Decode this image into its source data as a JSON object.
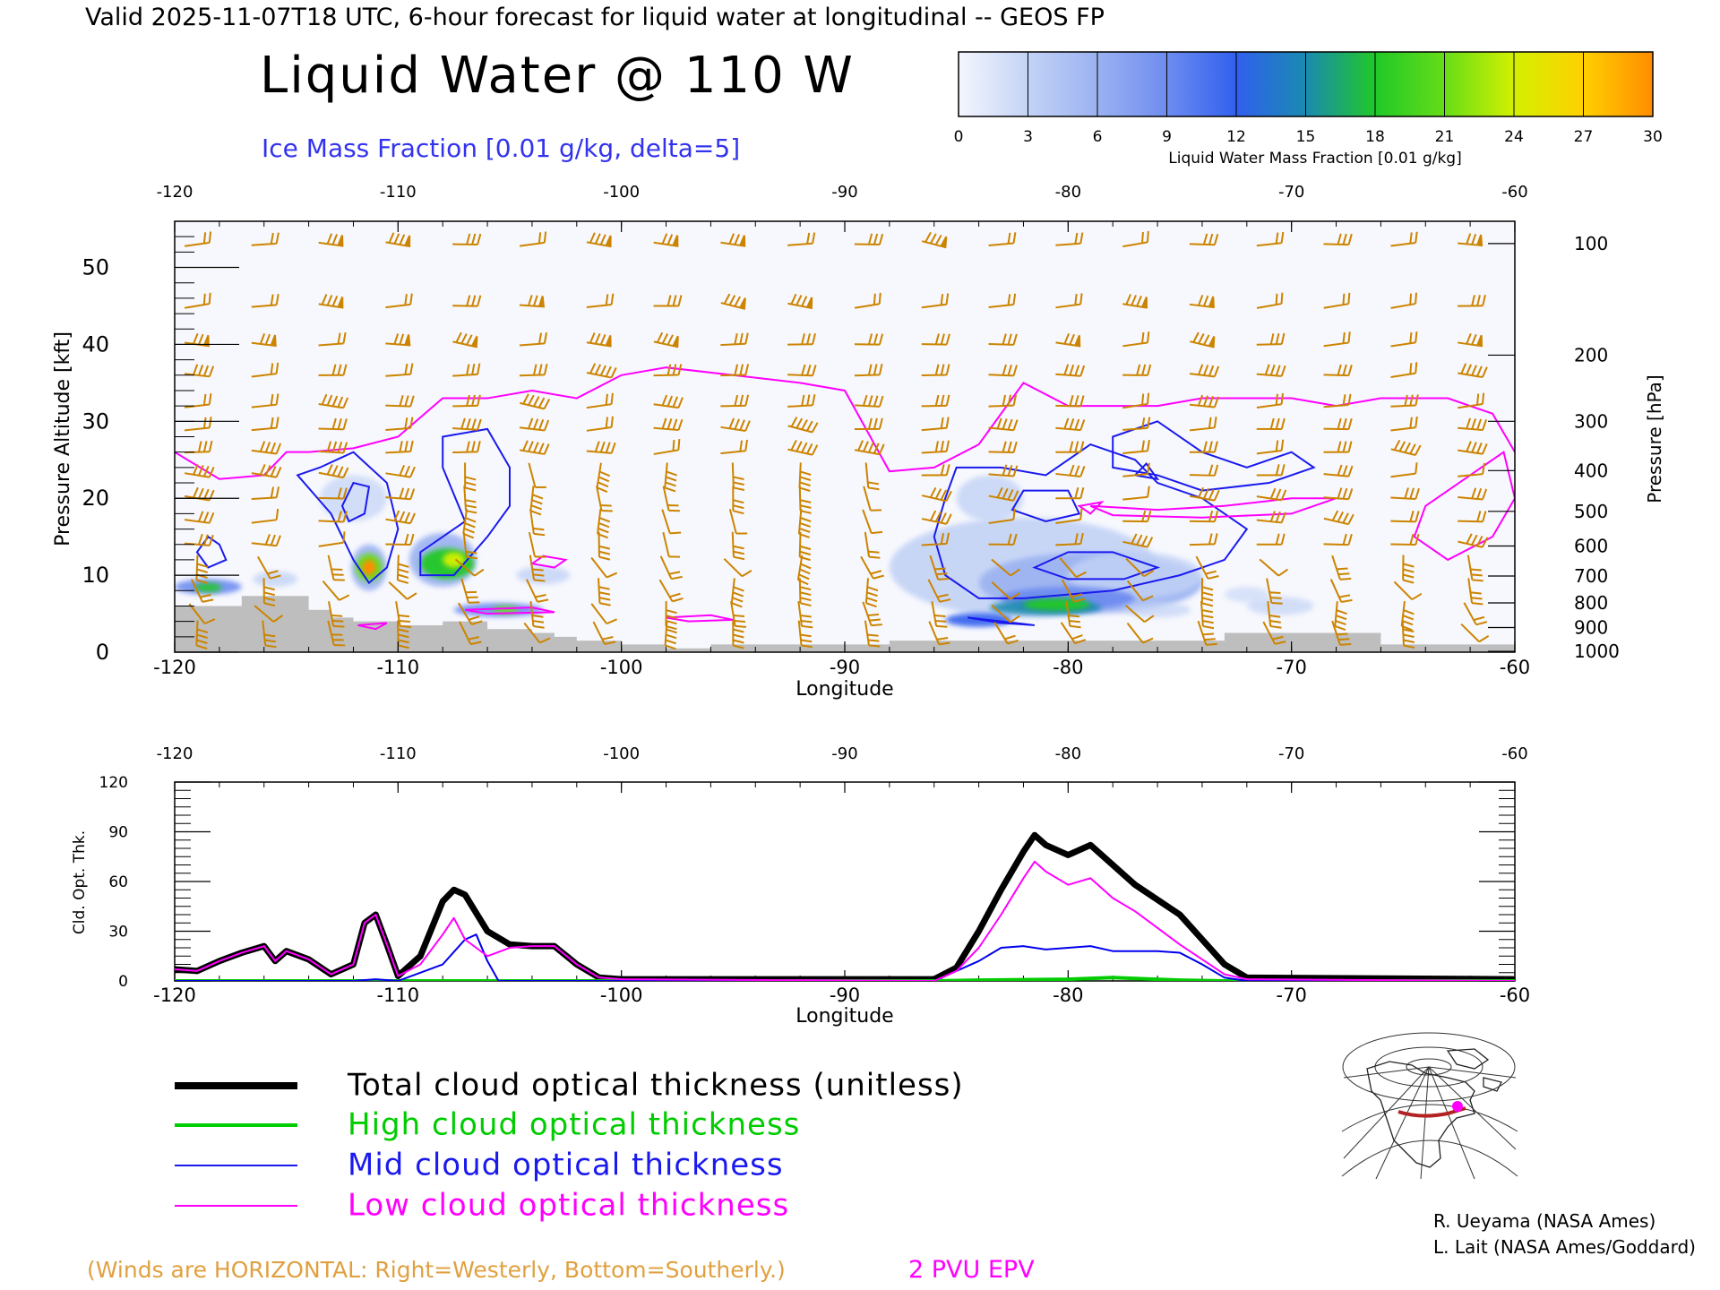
{
  "header": {
    "valid_line": "Valid 2025-11-07T18 UTC, 6-hour forecast for liquid water at longitudinal -- GEOS FP",
    "title": "Liquid Water @ 110 W",
    "subtitle": "Ice Mass Fraction [0.01 g/kg, delta=5]"
  },
  "colorbar": {
    "ticks": [
      "0",
      "3",
      "6",
      "9",
      "12",
      "15",
      "18",
      "21",
      "24",
      "27",
      "30"
    ],
    "label": "Liquid Water Mass Fraction [0.01 g/kg]",
    "colors": [
      "#f4f6fd",
      "#c3d3f6",
      "#9bb2f1",
      "#6e8cf0",
      "#3060ee",
      "#1a8ab0",
      "#20c828",
      "#66dd18",
      "#d4f000",
      "#ffd000",
      "#ff8c00",
      "#ff2000"
    ]
  },
  "cross_section": {
    "x_tick_labels": [
      "-120",
      "-110",
      "-100",
      "-90",
      "-80",
      "-70",
      "-60"
    ],
    "x_ticks": [
      -120,
      -110,
      -100,
      -90,
      -80,
      -70,
      -60
    ],
    "xlabel": "Longitude",
    "ylabel": "Pressure Altitude [kft]",
    "y_ticks": [
      "0",
      "10",
      "20",
      "30",
      "40",
      "50"
    ],
    "ylim": [
      0,
      56
    ],
    "right_label": "Pressure [hPa]",
    "pressure_ticks": [
      "100",
      "200",
      "300",
      "400",
      "500",
      "600",
      "700",
      "800",
      "900",
      "1000"
    ],
    "pressure_alt_kft": [
      53.1,
      38.6,
      30.0,
      23.6,
      18.3,
      13.8,
      9.9,
      6.4,
      3.2,
      0.1
    ],
    "terrain_kft": [
      [
        -120,
        6
      ],
      [
        -118,
        6
      ],
      [
        -117,
        7.3
      ],
      [
        -115,
        7.3
      ],
      [
        -114,
        5.5
      ],
      [
        -113,
        4.5
      ],
      [
        -112,
        4
      ],
      [
        -110,
        3.5
      ],
      [
        -108,
        4
      ],
      [
        -106,
        3
      ],
      [
        -104,
        2.5
      ],
      [
        -103,
        2
      ],
      [
        -102,
        1.5
      ],
      [
        -100,
        1
      ],
      [
        -98,
        0.5
      ],
      [
        -96,
        1
      ],
      [
        -94,
        1
      ],
      [
        -88,
        1.5
      ],
      [
        -85,
        1.5
      ],
      [
        -80,
        1.5
      ],
      [
        -75,
        1.5
      ],
      [
        -73,
        2.5
      ],
      [
        -66,
        1
      ],
      [
        -60,
        1
      ]
    ],
    "epv_2pvu_kft": [
      [
        -120,
        26
      ],
      [
        -118,
        22.5
      ],
      [
        -116,
        23
      ],
      [
        -115,
        26
      ],
      [
        -114,
        26
      ],
      [
        -112,
        26.5
      ],
      [
        -110,
        28
      ],
      [
        -108,
        33
      ],
      [
        -106,
        33
      ],
      [
        -104,
        34
      ],
      [
        -102,
        33
      ],
      [
        -100,
        36
      ],
      [
        -98,
        37
      ],
      [
        -95,
        36
      ],
      [
        -92,
        35
      ],
      [
        -90,
        34
      ],
      [
        -88,
        23.5
      ],
      [
        -86,
        24
      ],
      [
        -84,
        27
      ],
      [
        -82,
        35
      ],
      [
        -80,
        32
      ],
      [
        -78,
        32
      ],
      [
        -76,
        32
      ],
      [
        -74,
        33
      ],
      [
        -72,
        33
      ],
      [
        -70,
        33
      ],
      [
        -68,
        32
      ],
      [
        -66,
        33
      ],
      [
        -63,
        33
      ],
      [
        -61,
        31
      ],
      [
        -60,
        26
      ]
    ]
  },
  "optical_thickness": {
    "ylabel": "Cld. Opt. Thk.",
    "y_ticks": [
      "0",
      "30",
      "60",
      "90",
      "120"
    ],
    "ylim": [
      0,
      120
    ],
    "xlabel": "Longitude",
    "x_tick_labels": [
      "-120",
      "-110",
      "-100",
      "-90",
      "-80",
      "-70",
      "-60"
    ]
  },
  "chart_data": [
    {
      "type": "line",
      "title": "",
      "xlabel": "Longitude",
      "ylabel": "Cld. Opt. Thk.",
      "xlim": [
        -120,
        -60
      ],
      "ylim": [
        0,
        120
      ],
      "series": [
        {
          "name": "Total cloud optical thickness (unitless)",
          "color": "#000000",
          "points": [
            [
              -120,
              7
            ],
            [
              -119,
              6
            ],
            [
              -118,
              12
            ],
            [
              -117,
              17
            ],
            [
              -116,
              21
            ],
            [
              -115.5,
              12
            ],
            [
              -115,
              18
            ],
            [
              -114,
              13
            ],
            [
              -113,
              4
            ],
            [
              -112,
              10
            ],
            [
              -111.5,
              35
            ],
            [
              -111,
              40
            ],
            [
              -110.5,
              22
            ],
            [
              -110,
              3
            ],
            [
              -109,
              15
            ],
            [
              -108,
              48
            ],
            [
              -107.5,
              55
            ],
            [
              -107,
              52
            ],
            [
              -106,
              30
            ],
            [
              -105,
              22
            ],
            [
              -104,
              21
            ],
            [
              -103,
              21
            ],
            [
              -102,
              10
            ],
            [
              -101,
              2
            ],
            [
              -100,
              1
            ],
            [
              -90,
              1
            ],
            [
              -86,
              1
            ],
            [
              -85,
              8
            ],
            [
              -84,
              30
            ],
            [
              -83,
              55
            ],
            [
              -82,
              78
            ],
            [
              -81.5,
              88
            ],
            [
              -81,
              82
            ],
            [
              -80,
              76
            ],
            [
              -79,
              82
            ],
            [
              -78,
              70
            ],
            [
              -77,
              58
            ],
            [
              -75,
              40
            ],
            [
              -73,
              10
            ],
            [
              -72,
              2
            ],
            [
              -60,
              1
            ]
          ]
        },
        {
          "name": "High cloud optical thickness",
          "color": "#00cc00",
          "points": [
            [
              -120,
              0
            ],
            [
              -100,
              0
            ],
            [
              -86,
              0
            ],
            [
              -84,
              0.5
            ],
            [
              -80,
              1
            ],
            [
              -78,
              2
            ],
            [
              -75,
              0.5
            ],
            [
              -73,
              0
            ],
            [
              -60,
              0
            ]
          ]
        },
        {
          "name": "Mid cloud optical thickness",
          "color": "#0000ee",
          "points": [
            [
              -120,
              0
            ],
            [
              -116,
              0
            ],
            [
              -112,
              0
            ],
            [
              -111,
              1
            ],
            [
              -110,
              0
            ],
            [
              -108,
              10
            ],
            [
              -107,
              25
            ],
            [
              -106.5,
              28
            ],
            [
              -106,
              12
            ],
            [
              -105.5,
              0
            ],
            [
              -100,
              0
            ],
            [
              -86,
              0
            ],
            [
              -84,
              12
            ],
            [
              -83,
              20
            ],
            [
              -82,
              21
            ],
            [
              -81,
              19
            ],
            [
              -80,
              20
            ],
            [
              -79,
              21
            ],
            [
              -78,
              18
            ],
            [
              -76,
              18
            ],
            [
              -75,
              17
            ],
            [
              -74,
              10
            ],
            [
              -73,
              2
            ],
            [
              -72,
              0
            ],
            [
              -60,
              0
            ]
          ]
        },
        {
          "name": "Low cloud optical thickness",
          "color": "#ff00ff",
          "points": [
            [
              -120,
              7
            ],
            [
              -119,
              6
            ],
            [
              -118,
              12
            ],
            [
              -117,
              17
            ],
            [
              -116,
              21
            ],
            [
              -115.5,
              12
            ],
            [
              -115,
              18
            ],
            [
              -114,
              13
            ],
            [
              -113,
              4
            ],
            [
              -112,
              10
            ],
            [
              -111.5,
              35
            ],
            [
              -111,
              40
            ],
            [
              -110.5,
              22
            ],
            [
              -110,
              3
            ],
            [
              -109,
              10
            ],
            [
              -108,
              28
            ],
            [
              -107.5,
              38
            ],
            [
              -107,
              25
            ],
            [
              -106,
              15
            ],
            [
              -105,
              20
            ],
            [
              -104,
              21
            ],
            [
              -103,
              21
            ],
            [
              -102,
              10
            ],
            [
              -101,
              2
            ],
            [
              -100,
              1
            ],
            [
              -86,
              0
            ],
            [
              -85,
              6
            ],
            [
              -84,
              20
            ],
            [
              -83,
              40
            ],
            [
              -82,
              62
            ],
            [
              -81.5,
              72
            ],
            [
              -81,
              66
            ],
            [
              -80,
              58
            ],
            [
              -79,
              62
            ],
            [
              -78,
              50
            ],
            [
              -77,
              42
            ],
            [
              -75,
              22
            ],
            [
              -73,
              4
            ],
            [
              -72,
              1
            ],
            [
              -60,
              0
            ]
          ]
        }
      ]
    }
  ],
  "legend": {
    "items": [
      {
        "label": "Total cloud optical thickness (unitless)",
        "color": "#000000",
        "width": 7
      },
      {
        "label": "High cloud optical thickness",
        "color": "#00cc00",
        "width": 4
      },
      {
        "label": "Mid cloud optical thickness",
        "color": "#1a1aee",
        "width": 2
      },
      {
        "label": "Low cloud optical thickness",
        "color": "#ff00ff",
        "width": 2
      }
    ]
  },
  "footer": {
    "winds_note": "(Winds are HORIZONTAL: Right=Westerly, Bottom=Southerly.)",
    "epv_label": "2 PVU EPV",
    "credit1": "R. Ueyama (NASA Ames)",
    "credit2": "L. Lait (NASA Ames/Goddard)"
  },
  "colors": {
    "winds": "#cc8400",
    "epv": "#ff00ff",
    "ice_contour": "#1a1aee",
    "terrain": "#bebebe",
    "subtitle": "#3333ee"
  }
}
